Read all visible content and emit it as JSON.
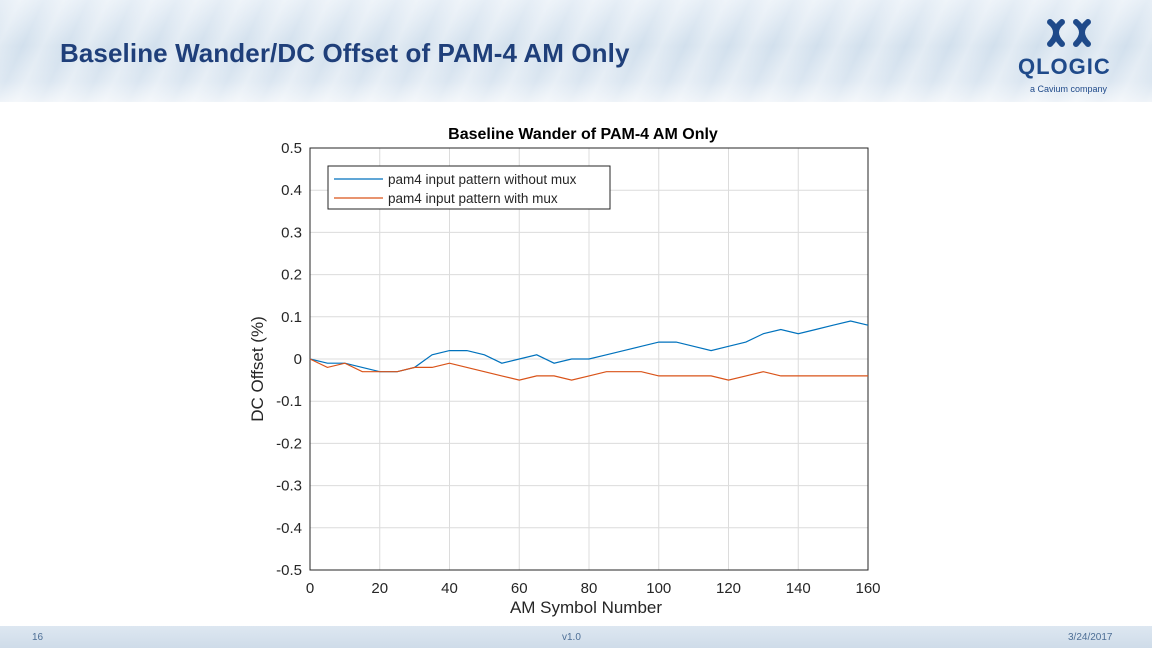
{
  "slide": {
    "title": "Baseline Wander/DC Offset of PAM-4 AM Only",
    "logo_text": "QLOGIC",
    "logo_subtext": "a Cavium company",
    "page_number": "16",
    "version": "v1.0",
    "date": "3/24/2017"
  },
  "colors": {
    "title": "#1f3f7a",
    "series1": "#0072bd",
    "series2": "#d95319",
    "grid": "#dcdcdc"
  },
  "chart_data": {
    "type": "line",
    "title": "Baseline Wander of PAM-4 AM Only",
    "xlabel": "AM Symbol Number",
    "ylabel": "DC Offset (%)",
    "xlim": [
      0,
      160
    ],
    "ylim": [
      -0.5,
      0.5
    ],
    "xticks": [
      0,
      20,
      40,
      60,
      80,
      100,
      120,
      140,
      160
    ],
    "yticks": [
      0.5,
      0.4,
      0.3,
      0.2,
      0.1,
      0,
      -0.1,
      -0.2,
      -0.3,
      -0.4,
      -0.5
    ],
    "grid": true,
    "legend_position": "top-left",
    "x": [
      0,
      5,
      10,
      15,
      20,
      25,
      30,
      35,
      40,
      45,
      50,
      55,
      60,
      65,
      70,
      75,
      80,
      85,
      90,
      95,
      100,
      105,
      110,
      115,
      120,
      125,
      130,
      135,
      140,
      145,
      150,
      155,
      160
    ],
    "series": [
      {
        "name": "pam4 input pattern without mux",
        "values": [
          0,
          -0.01,
          -0.01,
          -0.02,
          -0.03,
          -0.03,
          -0.02,
          0.01,
          0.02,
          0.02,
          0.01,
          -0.01,
          0.0,
          0.01,
          -0.01,
          0.0,
          0.0,
          0.01,
          0.02,
          0.03,
          0.04,
          0.04,
          0.03,
          0.02,
          0.03,
          0.04,
          0.06,
          0.07,
          0.06,
          0.07,
          0.08,
          0.09,
          0.08
        ]
      },
      {
        "name": "pam4 input pattern with mux",
        "values": [
          0,
          -0.02,
          -0.01,
          -0.03,
          -0.03,
          -0.03,
          -0.02,
          -0.02,
          -0.01,
          -0.02,
          -0.03,
          -0.04,
          -0.05,
          -0.04,
          -0.04,
          -0.05,
          -0.04,
          -0.03,
          -0.03,
          -0.03,
          -0.04,
          -0.04,
          -0.04,
          -0.04,
          -0.05,
          -0.04,
          -0.03,
          -0.04,
          -0.04,
          -0.04,
          -0.04,
          -0.04,
          -0.04
        ]
      }
    ]
  }
}
